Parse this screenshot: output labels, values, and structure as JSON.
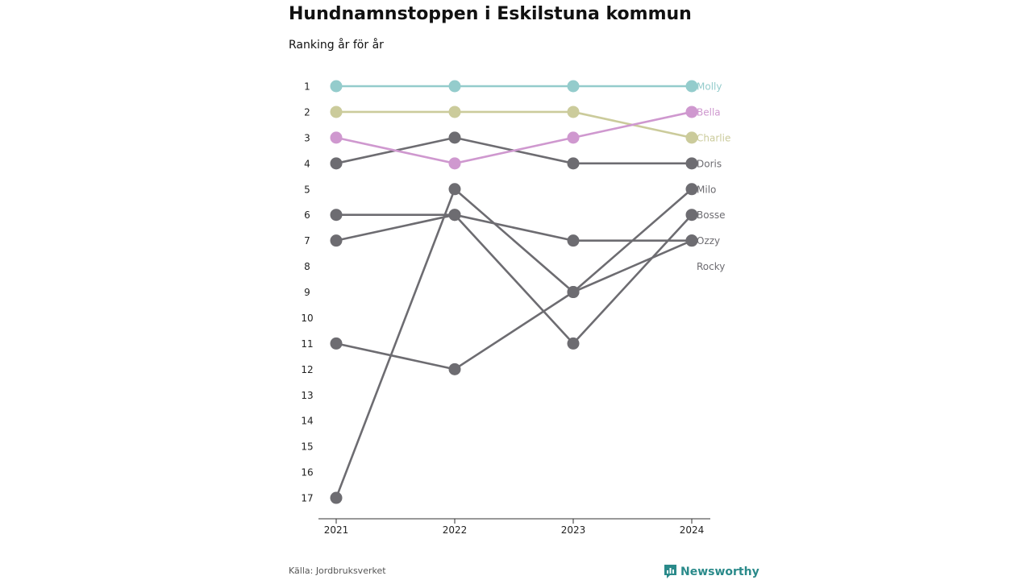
{
  "header": {
    "title": "Hundnamnstoppen i Eskilstuna kommun",
    "subtitle": "Ranking år för år"
  },
  "footer": {
    "source": "Källa: Jordbruksverket",
    "brand": "Newsworthy"
  },
  "chart_data": {
    "type": "line",
    "x": [
      "2021",
      "2022",
      "2023",
      "2024"
    ],
    "y_ticks": [
      "1",
      "2",
      "3",
      "4",
      "5",
      "6",
      "7",
      "8",
      "9",
      "10",
      "11",
      "12",
      "13",
      "14",
      "15",
      "16",
      "17"
    ],
    "ylim": [
      1,
      17
    ],
    "y_inverted": true,
    "grid": false,
    "colors": {
      "highlight_default": "#6d6c71"
    },
    "series": [
      {
        "name": "Doris",
        "values": [
          4,
          3,
          4,
          4
        ],
        "color": "#6d6c71"
      },
      {
        "name": "Milo",
        "values": [
          17,
          5,
          9,
          5
        ],
        "color": "#6d6c71"
      },
      {
        "name": "Bosse",
        "values": [
          7,
          6,
          11,
          6
        ],
        "color": "#6d6c71"
      },
      {
        "name": "Ozzy",
        "values": [
          6,
          6,
          7,
          7
        ],
        "color": "#6d6c71"
      },
      {
        "name": "Rocky",
        "values": [
          11,
          12,
          9,
          7
        ],
        "color": "#6d6c71"
      },
      {
        "name": "Charlie",
        "values": [
          2,
          2,
          2,
          3
        ],
        "color": "#cbcb9b"
      },
      {
        "name": "Bella",
        "values": [
          3,
          4,
          3,
          2
        ],
        "color": "#cf98cf"
      },
      {
        "name": "Molly",
        "values": [
          1,
          1,
          1,
          1
        ],
        "color": "#94cccc"
      }
    ],
    "label_ranks": {
      "Molly": 1,
      "Bella": 2,
      "Charlie": 3,
      "Doris": 4,
      "Milo": 5,
      "Bosse": 6,
      "Ozzy": 7,
      "Rocky": 8
    }
  }
}
